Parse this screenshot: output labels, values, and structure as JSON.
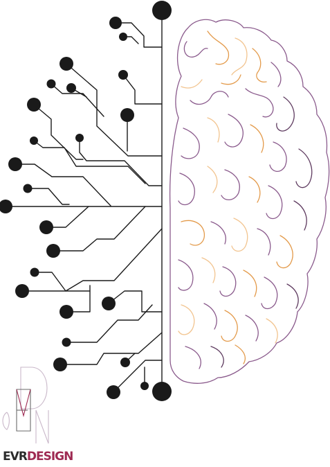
{
  "logo": {
    "part1": "EVR",
    "part2": "DESIGN",
    "monogram": "EVR"
  },
  "colors": {
    "circuit": "#1a1a1a",
    "brain_purple": "#8a5a8c",
    "brain_orange": "#e39a4a",
    "brain_peach": "#f2c48f",
    "brain_plum": "#5e3a5f",
    "logo_dark": "#2b2b2b",
    "logo_accent": "#9e2a52"
  },
  "icons": [
    "circuit-tree-icon",
    "brain-outline-icon",
    "evr-monogram-icon"
  ]
}
